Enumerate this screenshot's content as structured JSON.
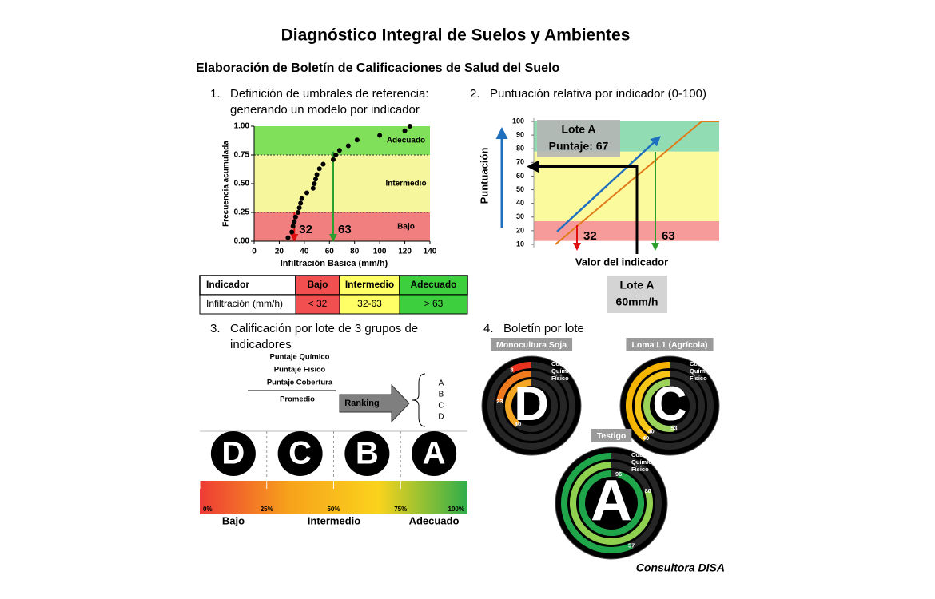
{
  "title": "Diagnóstico Integral de Suelos y  Ambientes",
  "subtitle": "Elaboración de Boletín de Calificaciones de Salud del Suelo",
  "steps": [
    {
      "number": "1.",
      "heading": [
        "Definición de umbrales de referencia:",
        "generando un modelo por indicador"
      ],
      "chart": {
        "type": "scatter",
        "x_label": "Infiltración Básica (mm/h)",
        "y_label": "Frecuencia acumulada",
        "xlim": [
          0,
          140
        ],
        "xticks": [
          0,
          20,
          40,
          60,
          80,
          100,
          120,
          140
        ],
        "ylim": [
          0,
          1
        ],
        "yticks": [
          {
            "value": 0,
            "label": "0.00"
          },
          {
            "value": 0.25,
            "label": "0.25"
          },
          {
            "value": 0.5,
            "label": "0.50"
          },
          {
            "value": 0.75,
            "label": "0.75"
          },
          {
            "value": 1,
            "label": "1.00"
          }
        ],
        "x": [
          27,
          30,
          31,
          32,
          33,
          35,
          36,
          37,
          38,
          42,
          47,
          48,
          49,
          50,
          52,
          55,
          63,
          65,
          68,
          75,
          82,
          100,
          120,
          124
        ],
        "y": [
          0.03,
          0.08,
          0.13,
          0.17,
          0.21,
          0.25,
          0.29,
          0.33,
          0.37,
          0.42,
          0.46,
          0.5,
          0.54,
          0.58,
          0.63,
          0.67,
          0.71,
          0.75,
          0.79,
          0.83,
          0.88,
          0.92,
          0.96,
          1.0
        ],
        "color": "#000000",
        "zones": [
          {
            "name": "Bajo",
            "range": [
              0,
              0.25
            ],
            "color": "#f27f7f"
          },
          {
            "name": "Intermedio",
            "range": [
              0.25,
              0.75
            ],
            "color": "#f6f69c"
          },
          {
            "name": "Adecuado",
            "range": [
              0.75,
              1
            ],
            "color": "#80e05a"
          }
        ],
        "thresholds": [
          {
            "value": 32,
            "y": 0.25,
            "color": "#e01010"
          },
          {
            "value": 63,
            "y": 0.78,
            "color": "#2ca02c"
          }
        ]
      },
      "table": {
        "header": [
          "Indicador",
          "Bajo",
          "Intermedio",
          "Adecuado"
        ],
        "rows": [
          [
            "Infiltración (mm/h)",
            "< 32",
            "32-63",
            "> 63"
          ]
        ],
        "column_colors": [
          "#ffffff",
          "#f25050",
          "#ffff66",
          "#3ecf3e"
        ]
      }
    },
    {
      "number": "2.",
      "heading": [
        "Puntuación relativa por indicador (0-100)"
      ],
      "chart": {
        "type": "score",
        "y_label": "Puntuación",
        "x_label": "Valor del indicador",
        "ylim": [
          10,
          100
        ],
        "yticks": [
          10,
          20,
          30,
          40,
          50,
          60,
          70,
          80,
          90,
          100
        ],
        "zones": [
          {
            "range": [
              10,
              27
            ],
            "color": "#f79a9a"
          },
          {
            "range": [
              27,
              78
            ],
            "color": "#fbfb9e"
          },
          {
            "range": [
              78,
              100
            ],
            "color": "#92dcb4"
          }
        ],
        "thresholds": [
          {
            "value": 32,
            "color": "#e01010"
          },
          {
            "value": 63,
            "color": "#2ca02c"
          }
        ],
        "score": 67,
        "callout": [
          "Lote A",
          "Puntaje: 67"
        ],
        "lot_box": [
          "Lote A",
          "60mm/h"
        ]
      }
    },
    {
      "number": "3.",
      "heading": [
        "Calificación por lote de 3 grupos de",
        "indicadores"
      ],
      "scores": [
        "Puntaje Químico",
        "Puntaje Físico",
        "Puntaje Cobertura"
      ],
      "average": "Promedio",
      "ranking": "Ranking",
      "grades": [
        "A",
        "B",
        "C",
        "D"
      ],
      "scale": {
        "letters": [
          "D",
          "C",
          "B",
          "A"
        ],
        "xlim": [
          0,
          100
        ],
        "ticks": [
          {
            "value": 0,
            "label": "0%"
          },
          {
            "value": 25,
            "label": "25%"
          },
          {
            "value": 50,
            "label": "50%"
          },
          {
            "value": 75,
            "label": "75%"
          },
          {
            "value": 100,
            "label": "100%"
          }
        ],
        "colors": [
          "#ee3b36",
          "#f7a21b",
          "#fad31c",
          "#2fae4b"
        ],
        "zones": [
          "Bajo",
          "Intermedio",
          "Adecuado"
        ]
      }
    },
    {
      "number": "4.",
      "heading": [
        "Boletín por lote"
      ],
      "lots": [
        {
          "name": "Monocultura Soja",
          "grade": "D",
          "indicators": [
            "Cobertura",
            "Químico",
            "Físico"
          ],
          "values": [
            8,
            23,
            40
          ],
          "colors": [
            "#e8321e",
            "#f07a1e",
            "#f5a623"
          ]
        },
        {
          "name": "Loma L1 (Agrícola)",
          "grade": "C",
          "indicators": [
            "Cobertura",
            "Químico",
            "Físico"
          ],
          "values": [
            40,
            40,
            53
          ],
          "colors": [
            "#f5b400",
            "#f5c518",
            "#9bd35a"
          ]
        },
        {
          "name": "Testigo",
          "grade": "A",
          "indicators": [
            "Cobertura",
            "Químico",
            "Físico"
          ],
          "values": [
            57,
            80,
            96
          ],
          "colors": [
            "#1fa64a",
            "#8fd14f",
            "#1fa64a"
          ]
        }
      ]
    }
  ],
  "footer": "Consultora DISA"
}
